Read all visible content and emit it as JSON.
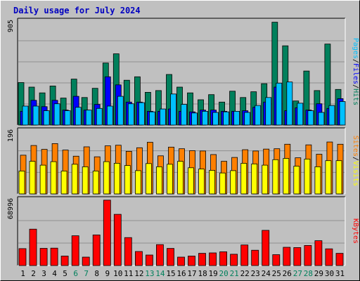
{
  "title": "Daily usage for July 2024",
  "colors": {
    "hits": "#00805c",
    "files": "#0000ff",
    "pages": "#00c0ff",
    "visits": "#ffff00",
    "sites": "#ff8000",
    "kbytes": "#ff0000",
    "weekend_label": "#00805c",
    "weekday_label": "#000000",
    "panel_bg": "#c0c0c0"
  },
  "chart_data": [
    {
      "type": "bar",
      "title": "Hits / Files / Pages",
      "y_max_label": "905",
      "ylim": [
        0,
        905
      ],
      "series": [
        {
          "name": "Hits",
          "values": [
            370,
            330,
            280,
            340,
            235,
            400,
            240,
            320,
            540,
            620,
            390,
            420,
            285,
            300,
            440,
            330,
            280,
            220,
            265,
            200,
            295,
            240,
            290,
            360,
            895,
            690,
            210,
            470,
            300,
            705,
            310
          ]
        },
        {
          "name": "Files",
          "values": [
            120,
            215,
            160,
            215,
            130,
            250,
            130,
            180,
            420,
            350,
            200,
            200,
            120,
            120,
            140,
            120,
            115,
            130,
            130,
            120,
            120,
            125,
            155,
            200,
            330,
            125,
            150,
            130,
            185,
            145,
            230
          ]
        },
        {
          "name": "Pages",
          "values": [
            165,
            165,
            125,
            185,
            125,
            155,
            130,
            145,
            165,
            250,
            185,
            195,
            115,
            140,
            270,
            180,
            105,
            120,
            110,
            115,
            120,
            110,
            170,
            240,
            365,
            375,
            190,
            125,
            110,
            170,
            205
          ]
        }
      ],
      "y_label_parts": [
        "Pages",
        "/",
        "Files",
        "/",
        "Hits"
      ]
    },
    {
      "type": "bar",
      "title": "Visits / Sites",
      "y_max_label": "196",
      "ylim": [
        0,
        196
      ],
      "series": [
        {
          "name": "Sites",
          "values": [
            120,
            150,
            138,
            156,
            136,
            117,
            146,
            115,
            149,
            151,
            132,
            143,
            160,
            118,
            145,
            140,
            134,
            133,
            122,
            101,
            113,
            137,
            133,
            139,
            140,
            154,
            112,
            152,
            123,
            161,
            154
          ]
        },
        {
          "name": "Visits",
          "values": [
            71,
            101,
            89,
            100,
            71,
            92,
            84,
            71,
            100,
            95,
            88,
            72,
            94,
            84,
            92,
            101,
            81,
            77,
            73,
            65,
            72,
            95,
            93,
            89,
            106,
            110,
            86,
            108,
            84,
            103,
            103
          ]
        }
      ],
      "y_label_parts": [
        "Sites",
        "/",
        "Visits"
      ]
    },
    {
      "type": "bar",
      "title": "KBytes",
      "y_max_label": "68996",
      "ylim": [
        0,
        68996
      ],
      "series": [
        {
          "name": "KBytes",
          "values": [
            17700,
            38000,
            18000,
            18200,
            9900,
            31100,
            8800,
            32000,
            68300,
            53500,
            29200,
            14700,
            11000,
            21900,
            17900,
            8800,
            9900,
            12800,
            13200,
            14400,
            11800,
            21500,
            16000,
            36800,
            11400,
            19100,
            18800,
            21000,
            26000,
            17500,
            12800
          ]
        }
      ],
      "y_label_parts": [
        "KBytes"
      ]
    }
  ],
  "x_axis": {
    "days": [
      1,
      2,
      3,
      4,
      5,
      6,
      7,
      8,
      9,
      10,
      11,
      12,
      13,
      14,
      15,
      16,
      17,
      18,
      19,
      20,
      21,
      22,
      23,
      24,
      25,
      26,
      27,
      28,
      29,
      30,
      31
    ],
    "weekend_days": [
      6,
      7,
      13,
      14,
      20,
      21,
      27,
      28
    ]
  }
}
